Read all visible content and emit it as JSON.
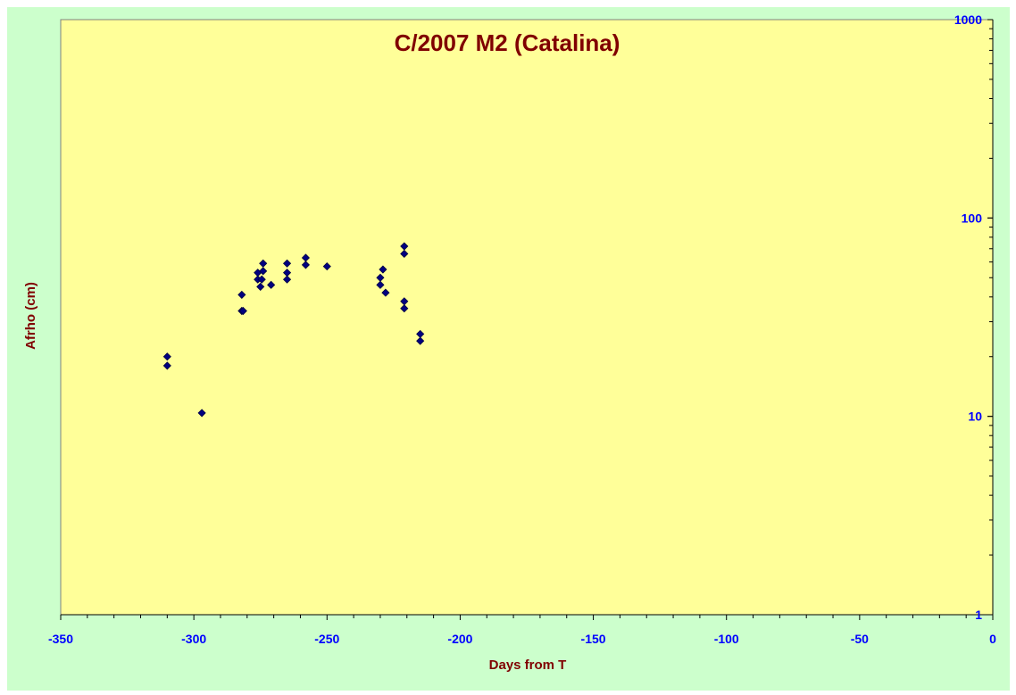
{
  "chart_data": {
    "type": "scatter",
    "title": "C/2007 M2 (Catalina)",
    "xlabel": "Days from T",
    "ylabel": "Afrho (cm)",
    "xlim": [
      -350,
      0
    ],
    "ylim": [
      1,
      1000
    ],
    "y_scale": "log",
    "x_ticks": [
      -350,
      -300,
      -250,
      -200,
      -150,
      -100,
      -50,
      0
    ],
    "x_tick_labels": [
      "-350",
      "-300",
      "-250",
      "-200",
      "-150",
      "-100",
      "-50",
      "0"
    ],
    "y_ticks": [
      1,
      10,
      100,
      1000
    ],
    "y_tick_labels": [
      "1",
      "10",
      "100",
      "1000"
    ],
    "y_axis_side": "right",
    "grid": false,
    "legend": "none",
    "colors": {
      "background": "#ccffcc",
      "plot_area": "#ffff99",
      "title": "#800000",
      "axis_labels": "#800000",
      "tick_labels": "#0000ff",
      "marker": "#000080"
    },
    "marker": "diamond",
    "points": [
      {
        "x": -310,
        "y": 20
      },
      {
        "x": -310,
        "y": 18
      },
      {
        "x": -297,
        "y": 10.4
      },
      {
        "x": -282,
        "y": 41
      },
      {
        "x": -282,
        "y": 34
      },
      {
        "x": -281.5,
        "y": 34
      },
      {
        "x": -276,
        "y": 53
      },
      {
        "x": -276,
        "y": 49
      },
      {
        "x": -275,
        "y": 45
      },
      {
        "x": -274.5,
        "y": 49
      },
      {
        "x": -274,
        "y": 59
      },
      {
        "x": -274,
        "y": 54
      },
      {
        "x": -271,
        "y": 46
      },
      {
        "x": -265,
        "y": 59
      },
      {
        "x": -265,
        "y": 53
      },
      {
        "x": -265,
        "y": 49
      },
      {
        "x": -258,
        "y": 63
      },
      {
        "x": -258,
        "y": 58
      },
      {
        "x": -250,
        "y": 57
      },
      {
        "x": -230,
        "y": 50
      },
      {
        "x": -230,
        "y": 46
      },
      {
        "x": -229,
        "y": 55
      },
      {
        "x": -228,
        "y": 42
      },
      {
        "x": -221,
        "y": 72
      },
      {
        "x": -221,
        "y": 66
      },
      {
        "x": -221,
        "y": 38
      },
      {
        "x": -221,
        "y": 35
      },
      {
        "x": -215,
        "y": 26
      },
      {
        "x": -215,
        "y": 24
      }
    ]
  }
}
